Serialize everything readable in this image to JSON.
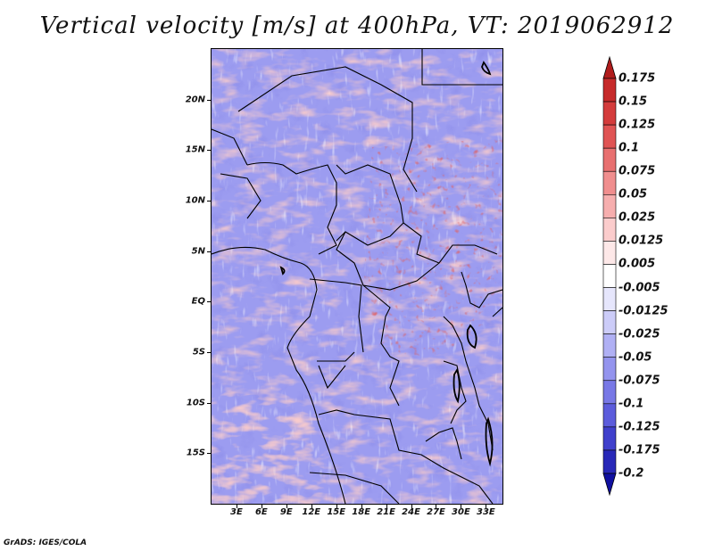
{
  "title": "Vertical velocity [m/s] at 400hPa, VT: 2019062912",
  "footer": "GrADS: IGES/COLA",
  "map": {
    "lon_range": [
      0,
      35
    ],
    "lat_range": [
      -20,
      25
    ],
    "lat_labels": [
      {
        "value": 20,
        "text": "20N"
      },
      {
        "value": 15,
        "text": "15N"
      },
      {
        "value": 10,
        "text": "10N"
      },
      {
        "value": 5,
        "text": "5N"
      },
      {
        "value": 0,
        "text": "EQ"
      },
      {
        "value": -5,
        "text": "5S"
      },
      {
        "value": -10,
        "text": "10S"
      },
      {
        "value": -15,
        "text": "15S"
      }
    ],
    "lon_labels": [
      {
        "value": 3,
        "text": "3E"
      },
      {
        "value": 6,
        "text": "6E"
      },
      {
        "value": 9,
        "text": "9E"
      },
      {
        "value": 12,
        "text": "12E"
      },
      {
        "value": 15,
        "text": "15E"
      },
      {
        "value": 18,
        "text": "18E"
      },
      {
        "value": 21,
        "text": "21E"
      },
      {
        "value": 24,
        "text": "24E"
      },
      {
        "value": 27,
        "text": "27E"
      },
      {
        "value": 30,
        "text": "30E"
      },
      {
        "value": 33,
        "text": "33E"
      }
    ]
  },
  "colorbar": {
    "levels": [
      "0.175",
      "0.15",
      "0.125",
      "0.1",
      "0.075",
      "0.05",
      "0.025",
      "0.0125",
      "0.005",
      "-0.005",
      "-0.0125",
      "-0.025",
      "-0.05",
      "-0.075",
      "-0.1",
      "-0.125",
      "-0.175",
      "-0.2"
    ],
    "colors": [
      "#b01c1c",
      "#c62a2a",
      "#d43c3c",
      "#e05454",
      "#e87070",
      "#f08e8e",
      "#f6aeae",
      "#fbcccc",
      "#fde8e8",
      "#ffffff",
      "#e6e6fc",
      "#ccccf8",
      "#b0b0f4",
      "#9494ee",
      "#7878e6",
      "#5c5cdc",
      "#4040cc",
      "#2828b8",
      "#1010a0"
    ]
  },
  "palette": {
    "positive": "#f29a9a",
    "negative": "#9a9af0",
    "strong_positive": "#c02424",
    "strong_negative": "#3a3ad0",
    "border": "#000000"
  }
}
